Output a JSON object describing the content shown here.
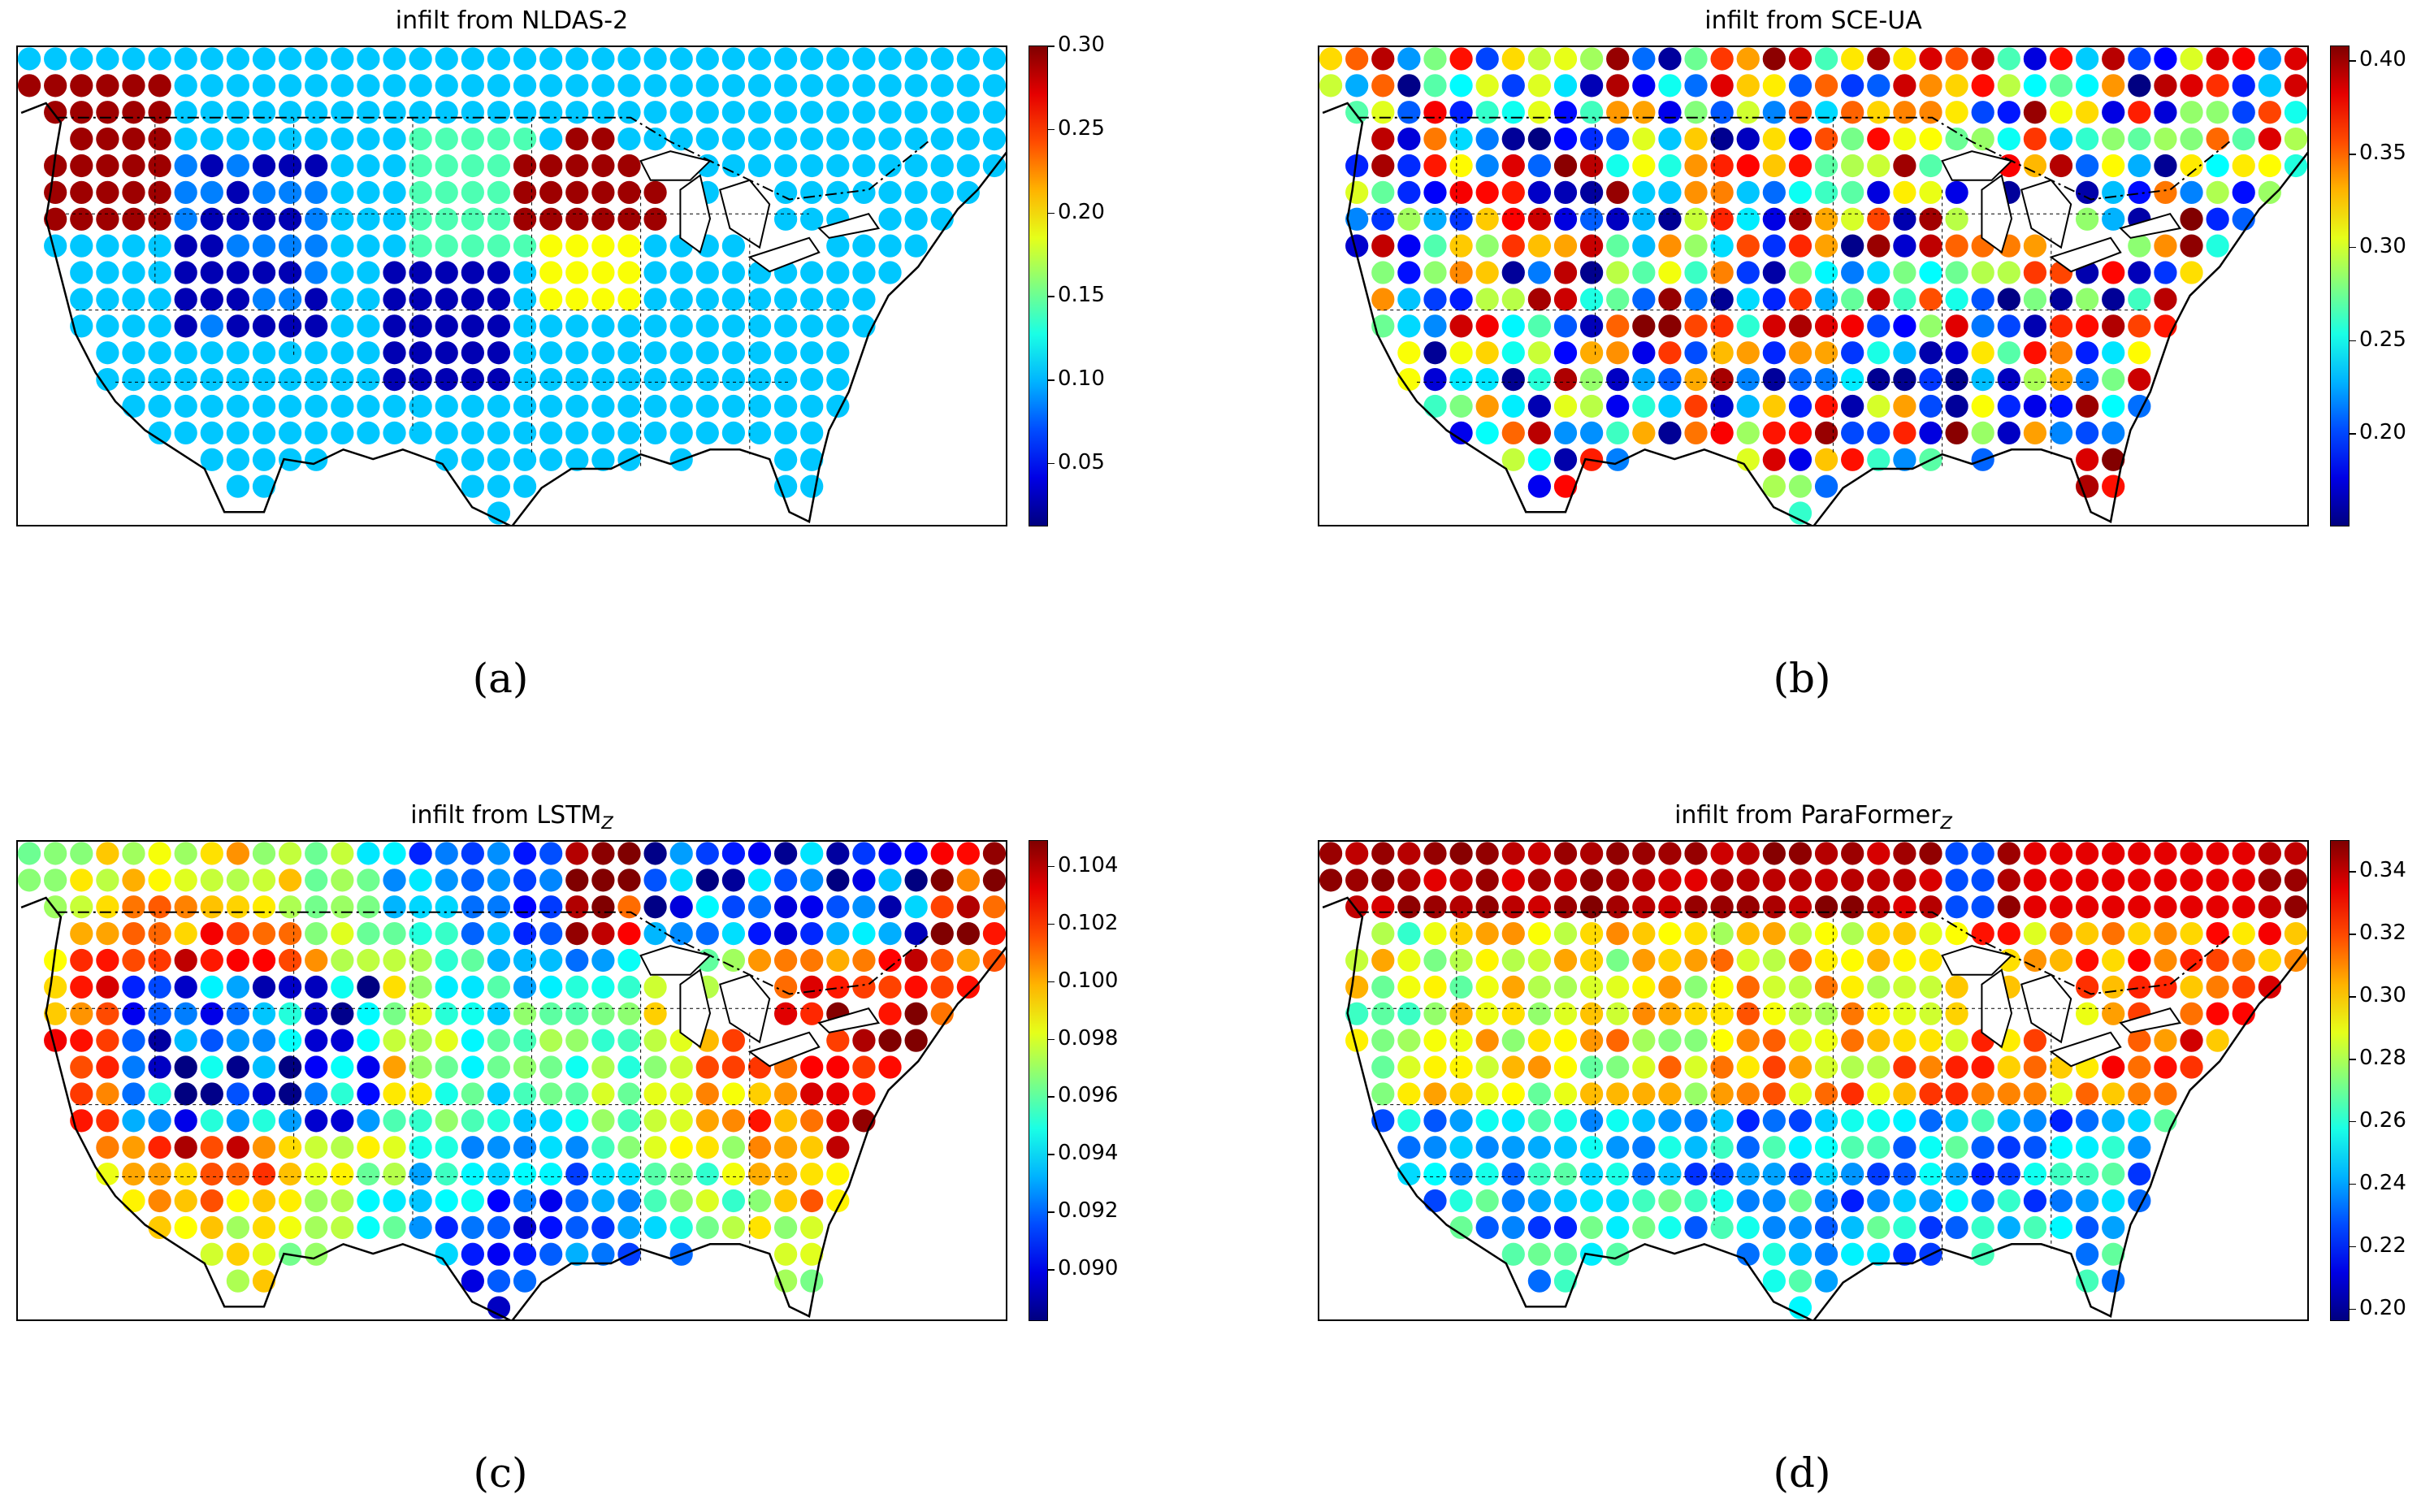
{
  "panels": [
    {
      "id": "a",
      "title_main": "infilt from NLDAS-2",
      "title_sub": "",
      "label": "(a)",
      "ticks": [
        "0.30",
        "0.25",
        "0.20",
        "0.15",
        "0.10",
        "0.05"
      ],
      "vmin": 0.012,
      "vmax": 0.3,
      "pattern": "nldas"
    },
    {
      "id": "b",
      "title_main": "infilt from SCE-UA",
      "title_sub": "",
      "label": "(b)",
      "ticks": [
        "0.40",
        "0.35",
        "0.30",
        "0.25",
        "0.20"
      ],
      "vmin": 0.15,
      "vmax": 0.408,
      "pattern": "random"
    },
    {
      "id": "c",
      "title_main": "infilt from LSTM",
      "title_sub": "Z",
      "label": "(c)",
      "ticks": [
        "0.104",
        "0.102",
        "0.100",
        "0.098",
        "0.096",
        "0.094",
        "0.092",
        "0.090"
      ],
      "vmin": 0.0882,
      "vmax": 0.1049,
      "pattern": "lstm"
    },
    {
      "id": "d",
      "title_main": "infilt from ParaFormer",
      "title_sub": "Z",
      "label": "(d)",
      "ticks": [
        "0.34",
        "0.32",
        "0.30",
        "0.28",
        "0.26",
        "0.24",
        "0.22",
        "0.20"
      ],
      "vmin": 0.196,
      "vmax": 0.35,
      "pattern": "paraformer"
    }
  ],
  "colormap": "jet"
}
